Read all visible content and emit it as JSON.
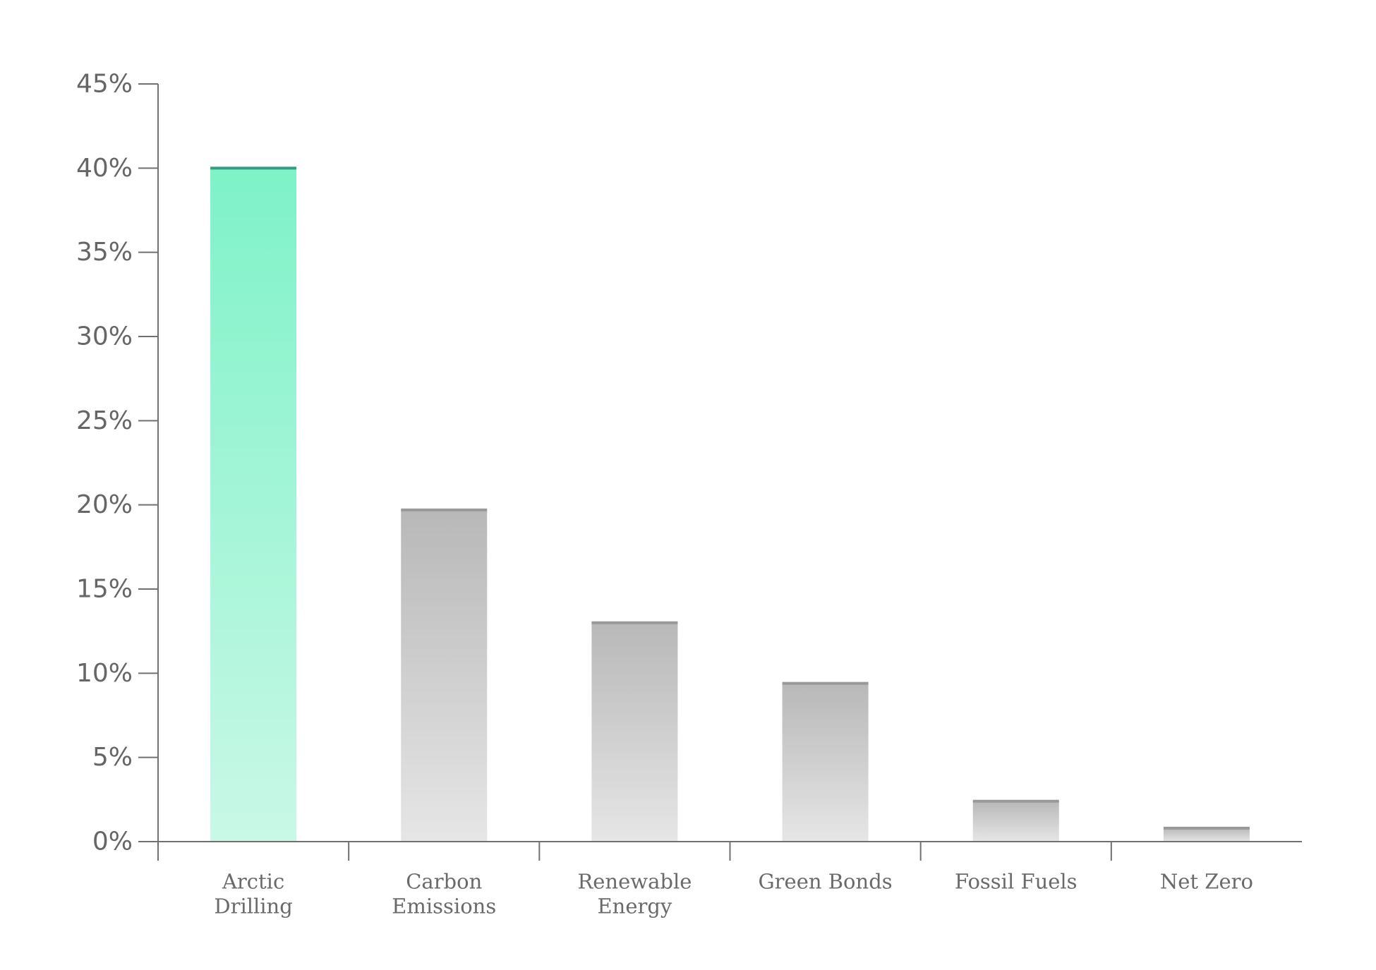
{
  "chart_data": {
    "type": "bar",
    "title": "",
    "xlabel": "",
    "ylabel": "",
    "categories": [
      [
        "Arctic",
        "Drilling"
      ],
      [
        "Carbon",
        "Emissions"
      ],
      [
        "Renewable",
        "Energy"
      ],
      [
        "Green Bonds"
      ],
      [
        "Fossil Fuels"
      ],
      [
        "Net Zero"
      ]
    ],
    "values": [
      40.0,
      19.7,
      13.0,
      9.4,
      2.4,
      0.8
    ],
    "ylim": [
      0,
      45
    ],
    "yticks": [
      0,
      5,
      10,
      15,
      20,
      25,
      30,
      35,
      40,
      45
    ],
    "ytick_labels": [
      "0%",
      "5%",
      "10%",
      "15%",
      "20%",
      "25%",
      "30%",
      "35%",
      "40%",
      "45%"
    ],
    "grid": false,
    "legend": "none",
    "colors": {
      "highlight_top": "#7ef2c8",
      "highlight_bottom": "#c9f8e6",
      "highlight_cap": "#3a9a82",
      "default_top": "#b8b8b8",
      "default_bottom": "#e6e6e6",
      "default_cap": "#999999",
      "axis": "#707070"
    },
    "highlight_index": 0
  }
}
